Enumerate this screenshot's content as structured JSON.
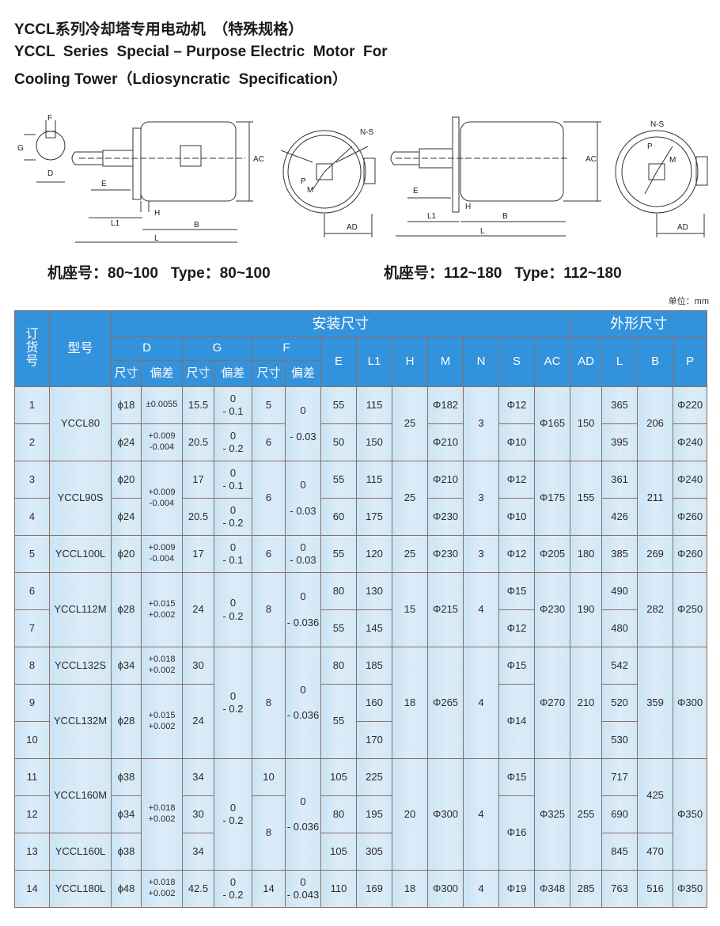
{
  "title": {
    "cn": "YCCL系列冷却塔专用电动机　（特殊规格）",
    "en_line1": "YCCL  Series  Special – Purpose Electric  Motor  For",
    "en_line2": "Cooling Tower（Ldiosyncratic  Specification）"
  },
  "drawings": {
    "left": {
      "F": "F",
      "G": "G",
      "D": "D",
      "E": "E",
      "AC": "AC",
      "NS": "N-S",
      "P": "P",
      "M": "M",
      "L1": "L1",
      "H": "H",
      "B": "B",
      "L": "L",
      "AD": "AD"
    },
    "right": {
      "E": "E",
      "AC": "AC",
      "NS": "N-S",
      "P": "P",
      "M": "M",
      "L1": "L1",
      "H": "H",
      "B": "B",
      "L": "L",
      "AD": "AD"
    }
  },
  "captions": {
    "left": "机座号：80~100   Type：80~100",
    "right": "机座号：112~180   Type：112~180"
  },
  "unit": "单位：mm",
  "table": {
    "header": {
      "order_no": "订\n货\n号",
      "model": "型号",
      "install": "安装尺寸",
      "outline": "外形尺寸",
      "D": "D",
      "G": "G",
      "F": "F",
      "size": "尺寸",
      "tol": "偏差",
      "E": "E",
      "L1": "L1",
      "H": "H",
      "M": "M",
      "N": "N",
      "S": "S",
      "AC": "AC",
      "AD": "AD",
      "L": "L",
      "B": "B",
      "P": "P"
    },
    "rows": [
      [
        {
          "v": "1"
        },
        {
          "v": "YCCL80",
          "rs": 2
        },
        {
          "v": "ϕ18"
        },
        {
          "v": "±0.0055",
          "c": "tol"
        },
        {
          "v": "15.5"
        },
        {
          "v": "0\n- 0.1"
        },
        {
          "v": "5"
        },
        {
          "v": "0\n\n- 0.03",
          "rs": 2
        },
        {
          "v": "55"
        },
        {
          "v": "115"
        },
        {
          "v": "25",
          "rs": 2
        },
        {
          "v": "Φ182"
        },
        {
          "v": "3",
          "rs": 2
        },
        {
          "v": "Φ12"
        },
        {
          "v": "Φ165",
          "rs": 2
        },
        {
          "v": "150",
          "rs": 2
        },
        {
          "v": "365"
        },
        {
          "v": "206",
          "rs": 2
        },
        {
          "v": "Φ220"
        }
      ],
      [
        {
          "v": "2"
        },
        {
          "v": "ϕ24"
        },
        {
          "v": "+0.009\n-0.004",
          "c": "tol"
        },
        {
          "v": "20.5"
        },
        {
          "v": "0\n- 0.2"
        },
        {
          "v": "6"
        },
        {
          "v": "50"
        },
        {
          "v": "150"
        },
        {
          "v": "Φ210"
        },
        {
          "v": "Φ10"
        },
        {
          "v": "395"
        },
        {
          "v": "Φ240"
        }
      ],
      [
        {
          "v": "3"
        },
        {
          "v": "YCCL90S",
          "rs": 2
        },
        {
          "v": "ϕ20"
        },
        {
          "v": "+0.009\n-0.004",
          "c": "tol",
          "rs": 2
        },
        {
          "v": "17"
        },
        {
          "v": "0\n- 0.1"
        },
        {
          "v": "6",
          "rs": 2
        },
        {
          "v": "0\n\n- 0.03",
          "rs": 2
        },
        {
          "v": "55"
        },
        {
          "v": "115"
        },
        {
          "v": "25",
          "rs": 2
        },
        {
          "v": "Φ210"
        },
        {
          "v": "3",
          "rs": 2
        },
        {
          "v": "Φ12"
        },
        {
          "v": "Φ175",
          "rs": 2
        },
        {
          "v": "155",
          "rs": 2
        },
        {
          "v": "361"
        },
        {
          "v": "211",
          "rs": 2
        },
        {
          "v": "Φ240"
        }
      ],
      [
        {
          "v": "4"
        },
        {
          "v": "ϕ24"
        },
        {
          "v": "20.5"
        },
        {
          "v": "0\n- 0.2"
        },
        {
          "v": "60"
        },
        {
          "v": "175"
        },
        {
          "v": "Φ230"
        },
        {
          "v": "Φ10"
        },
        {
          "v": "426"
        },
        {
          "v": "Φ260"
        }
      ],
      [
        {
          "v": "5"
        },
        {
          "v": "YCCL100L"
        },
        {
          "v": "ϕ20"
        },
        {
          "v": "+0.009\n-0.004",
          "c": "tol"
        },
        {
          "v": "17"
        },
        {
          "v": "0\n- 0.1"
        },
        {
          "v": "6"
        },
        {
          "v": "0\n- 0.03"
        },
        {
          "v": "55"
        },
        {
          "v": "120"
        },
        {
          "v": "25"
        },
        {
          "v": "Φ230"
        },
        {
          "v": "3"
        },
        {
          "v": "Φ12"
        },
        {
          "v": "Φ205"
        },
        {
          "v": "180"
        },
        {
          "v": "385"
        },
        {
          "v": "269"
        },
        {
          "v": "Φ260"
        }
      ],
      [
        {
          "v": "6"
        },
        {
          "v": "YCCL112M",
          "rs": 2
        },
        {
          "v": "ϕ28",
          "rs": 2
        },
        {
          "v": "+0.015\n+0.002",
          "c": "tol",
          "rs": 2
        },
        {
          "v": "24",
          "rs": 2
        },
        {
          "v": "0\n- 0.2",
          "rs": 2
        },
        {
          "v": "8",
          "rs": 2
        },
        {
          "v": "0\n\n- 0.036",
          "rs": 2
        },
        {
          "v": "80"
        },
        {
          "v": "130"
        },
        {
          "v": "15",
          "rs": 2
        },
        {
          "v": "Φ215",
          "rs": 2
        },
        {
          "v": "4",
          "rs": 2
        },
        {
          "v": "Φ15"
        },
        {
          "v": "Φ230",
          "rs": 2
        },
        {
          "v": "190",
          "rs": 2
        },
        {
          "v": "490"
        },
        {
          "v": "282",
          "rs": 2
        },
        {
          "v": "Φ250",
          "rs": 2
        }
      ],
      [
        {
          "v": "7"
        },
        {
          "v": "55"
        },
        {
          "v": "145"
        },
        {
          "v": "Φ12"
        },
        {
          "v": "480"
        }
      ],
      [
        {
          "v": "8"
        },
        {
          "v": "YCCL132S"
        },
        {
          "v": "ϕ34"
        },
        {
          "v": "+0.018\n+0.002",
          "c": "tol"
        },
        {
          "v": "30"
        },
        {
          "v": "0\n- 0.2",
          "rs": 3
        },
        {
          "v": "8",
          "rs": 3
        },
        {
          "v": "0\n\n- 0.036",
          "rs": 3
        },
        {
          "v": "80"
        },
        {
          "v": "185"
        },
        {
          "v": "18",
          "rs": 3
        },
        {
          "v": "Φ265",
          "rs": 3
        },
        {
          "v": "4",
          "rs": 3
        },
        {
          "v": "Φ15"
        },
        {
          "v": "Φ270",
          "rs": 3
        },
        {
          "v": "210",
          "rs": 3
        },
        {
          "v": "542"
        },
        {
          "v": "359",
          "rs": 3
        },
        {
          "v": "Φ300",
          "rs": 3
        }
      ],
      [
        {
          "v": "9"
        },
        {
          "v": "YCCL132M",
          "rs": 2
        },
        {
          "v": "ϕ28",
          "rs": 2
        },
        {
          "v": "+0.015\n+0.002",
          "c": "tol",
          "rs": 2
        },
        {
          "v": "24",
          "rs": 2
        },
        {
          "v": "55",
          "rs": 2
        },
        {
          "v": "160"
        },
        {
          "v": "Φ14",
          "rs": 2
        },
        {
          "v": "520"
        }
      ],
      [
        {
          "v": "10"
        },
        {
          "v": "170"
        },
        {
          "v": "530"
        }
      ],
      [
        {
          "v": "11"
        },
        {
          "v": "YCCL160M",
          "rs": 2
        },
        {
          "v": "ϕ38"
        },
        {
          "v": "+0.018\n+0.002",
          "c": "tol",
          "rs": 3
        },
        {
          "v": "34"
        },
        {
          "v": "0\n- 0.2",
          "rs": 3
        },
        {
          "v": "10"
        },
        {
          "v": "0\n\n- 0.036",
          "rs": 3
        },
        {
          "v": "105"
        },
        {
          "v": "225"
        },
        {
          "v": "20",
          "rs": 3
        },
        {
          "v": "Φ300",
          "rs": 3
        },
        {
          "v": "4",
          "rs": 3
        },
        {
          "v": "Φ15"
        },
        {
          "v": "Φ325",
          "rs": 3
        },
        {
          "v": "255",
          "rs": 3
        },
        {
          "v": "717"
        },
        {
          "v": "425",
          "rs": 2
        },
        {
          "v": "Φ350",
          "rs": 3
        }
      ],
      [
        {
          "v": "12"
        },
        {
          "v": "ϕ34"
        },
        {
          "v": "30"
        },
        {
          "v": "8",
          "rs": 2
        },
        {
          "v": "80"
        },
        {
          "v": "195"
        },
        {
          "v": "Φ16",
          "rs": 2
        },
        {
          "v": "690"
        }
      ],
      [
        {
          "v": "13"
        },
        {
          "v": "YCCL160L"
        },
        {
          "v": "ϕ38"
        },
        {
          "v": "34"
        },
        {
          "v": "105"
        },
        {
          "v": "305"
        },
        {
          "v": "845"
        },
        {
          "v": "470"
        }
      ],
      [
        {
          "v": "14"
        },
        {
          "v": "YCCL180L"
        },
        {
          "v": "ϕ48"
        },
        {
          "v": "+0.018\n+0.002",
          "c": "tol"
        },
        {
          "v": "42.5"
        },
        {
          "v": "0\n- 0.2"
        },
        {
          "v": "14"
        },
        {
          "v": "0\n- 0.043"
        },
        {
          "v": "110"
        },
        {
          "v": "169"
        },
        {
          "v": "18"
        },
        {
          "v": "Φ300"
        },
        {
          "v": "4"
        },
        {
          "v": "Φ19"
        },
        {
          "v": "Φ348"
        },
        {
          "v": "285"
        },
        {
          "v": "763"
        },
        {
          "v": "516"
        },
        {
          "v": "Φ350"
        }
      ]
    ]
  }
}
